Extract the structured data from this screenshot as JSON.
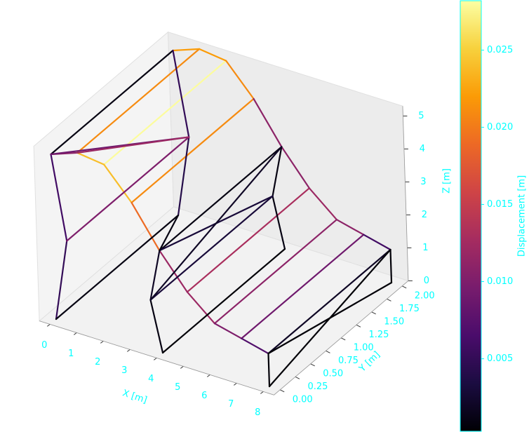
{
  "chart_data": {
    "type": "wireframe3d",
    "xlabel": "X [m]",
    "ylabel": "Y [m]",
    "zlabel": "Z [m]",
    "colorbar_label": "Displacement [m]",
    "text_color": "#00ffff",
    "xlim": [
      -0.4,
      8.4
    ],
    "ylim": [
      -0.1,
      2.1
    ],
    "zlim": [
      0,
      5.3
    ],
    "xticks": [
      0,
      1,
      2,
      3,
      4,
      5,
      6,
      7,
      8
    ],
    "yticks": [
      {
        "value": 0,
        "label": "0.00"
      },
      0.25,
      {
        "value": 0.5,
        "label": "0.50"
      },
      0.75,
      {
        "value": 1,
        "label": "1.00"
      },
      1.25,
      {
        "value": 1.5,
        "label": "1.50"
      },
      1.75,
      {
        "value": 2,
        "label": "2.00"
      }
    ],
    "zticks": [
      0,
      1,
      2,
      3,
      4,
      5
    ],
    "clim": [
      0.0003,
      0.0282
    ],
    "cticks": [
      0.005,
      {
        "value": 0.01,
        "label": "0.010"
      },
      0.015,
      {
        "value": 0.02,
        "label": "0.020"
      },
      0.025
    ],
    "colormap": [
      "#000004",
      "#1b0c41",
      "#4a0c6b",
      "#781c6d",
      "#a52c60",
      "#cf4446",
      "#ed6925",
      "#fb9b06",
      "#f7d13d",
      "#fcffa4"
    ],
    "grid": true,
    "nodes": [
      [
        0,
        0,
        5
      ],
      [
        1,
        0,
        5.3
      ],
      [
        2,
        0,
        5.2
      ],
      [
        3,
        0,
        4.3
      ],
      [
        4,
        0,
        3.1
      ],
      [
        5,
        0,
        2.1
      ],
      [
        6,
        0,
        1.4
      ],
      [
        7,
        0,
        1.2
      ],
      [
        8,
        0,
        1
      ],
      [
        0,
        2,
        5
      ],
      [
        1,
        2,
        5.3
      ],
      [
        2,
        2,
        5.2
      ],
      [
        3,
        2,
        4.3
      ],
      [
        4,
        2,
        3.1
      ],
      [
        5,
        2,
        2.1
      ],
      [
        6,
        2,
        1.4
      ],
      [
        7,
        2,
        1.2
      ],
      [
        8,
        2,
        1
      ],
      [
        0,
        0,
        0
      ],
      [
        4,
        0,
        0
      ],
      [
        8,
        0,
        0
      ],
      [
        0,
        2,
        0
      ],
      [
        4,
        2,
        0
      ],
      [
        8,
        2,
        0
      ],
      [
        0.5,
        0,
        2.5
      ],
      [
        3.6,
        0,
        1.5
      ],
      [
        0.5,
        2,
        2.5
      ],
      [
        3.6,
        2,
        1.5
      ]
    ],
    "members": [
      [
        0,
        9,
        0.001
      ],
      [
        1,
        10,
        0.021
      ],
      [
        2,
        11,
        0.028
      ],
      [
        3,
        12,
        0.021
      ],
      [
        4,
        13,
        0.001
      ],
      [
        5,
        14,
        0.013
      ],
      [
        6,
        15,
        0.011
      ],
      [
        7,
        16,
        0.009
      ],
      [
        8,
        17,
        0.002
      ],
      [
        0,
        1,
        0.011
      ],
      [
        1,
        2,
        0.024
      ],
      [
        2,
        3,
        0.024
      ],
      [
        3,
        4,
        0.019
      ],
      [
        4,
        5,
        0.012
      ],
      [
        5,
        6,
        0.012
      ],
      [
        6,
        7,
        0.01
      ],
      [
        7,
        8,
        0.007
      ],
      [
        9,
        10,
        0.022
      ],
      [
        10,
        11,
        0.022
      ],
      [
        11,
        12,
        0.021
      ],
      [
        12,
        13,
        0.011
      ],
      [
        13,
        14,
        0.011
      ],
      [
        14,
        15,
        0.012
      ],
      [
        15,
        16,
        0.011
      ],
      [
        16,
        17,
        0.006
      ],
      [
        0,
        24,
        0.006
      ],
      [
        24,
        18,
        0.005
      ],
      [
        9,
        26,
        0.005
      ],
      [
        26,
        21,
        0.004
      ],
      [
        4,
        25,
        0.002
      ],
      [
        25,
        19,
        0.001
      ],
      [
        13,
        27,
        0.001
      ],
      [
        27,
        22,
        0.001
      ],
      [
        8,
        20,
        0.0005
      ],
      [
        17,
        23,
        0.0005
      ],
      [
        0,
        26,
        0.009
      ],
      [
        24,
        26,
        0.01
      ],
      [
        1,
        26,
        0.012
      ],
      [
        18,
        21,
        0.001
      ],
      [
        4,
        27,
        0.003
      ],
      [
        25,
        27,
        0.003
      ],
      [
        25,
        13,
        0.002
      ],
      [
        19,
        22,
        0.0005
      ],
      [
        4,
        21,
        0.001
      ],
      [
        20,
        17,
        0.0005
      ],
      [
        8,
        23,
        0.0005
      ]
    ]
  }
}
